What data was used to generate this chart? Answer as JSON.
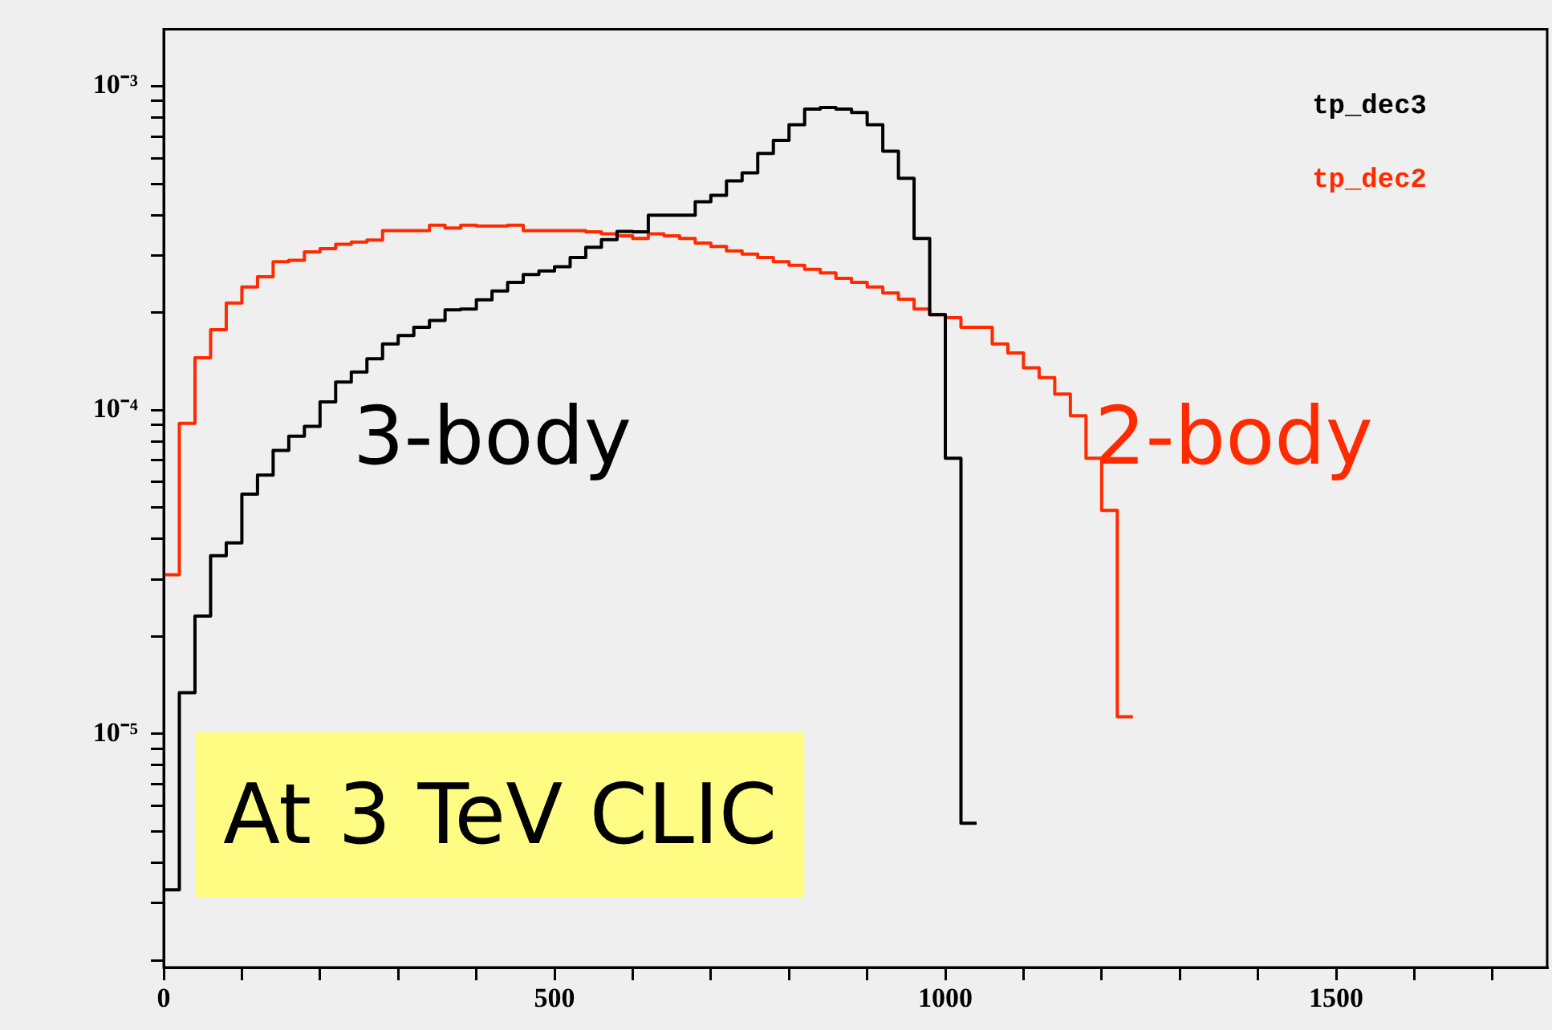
{
  "chart_data": {
    "type": "step",
    "series": [
      {
        "name": "tp_dec3",
        "color": "#000000",
        "x": [
          0,
          20,
          40,
          60,
          80,
          100,
          120,
          140,
          160,
          180,
          200,
          220,
          240,
          260,
          280,
          300,
          320,
          340,
          360,
          380,
          400,
          420,
          440,
          460,
          480,
          500,
          520,
          540,
          560,
          580,
          600,
          620,
          640,
          660,
          680,
          700,
          720,
          740,
          760,
          780,
          800,
          820,
          840,
          860,
          880,
          900,
          920,
          940,
          960,
          980,
          1000,
          1020,
          1040
        ],
        "values": [
          3.3e-06,
          1.34e-05,
          2.31e-05,
          3.55e-05,
          3.89e-05,
          5.5e-05,
          6.3e-05,
          7.5e-05,
          8.3e-05,
          8.9e-05,
          0.000106,
          0.000122,
          0.000131,
          0.000144,
          0.00016,
          0.00017,
          0.00018,
          0.000189,
          0.000204,
          0.000205,
          0.000219,
          0.000233,
          0.000248,
          0.000262,
          0.000269,
          0.000277,
          0.000296,
          0.000318,
          0.000336,
          0.000356,
          0.000355,
          0.0004,
          0.0004,
          0.0004,
          0.00044,
          0.00046,
          0.00051,
          0.00054,
          0.00062,
          0.00068,
          0.00076,
          0.00085,
          0.00086,
          0.00085,
          0.00083,
          0.00076,
          0.00063,
          0.00052,
          0.000339,
          0.000197,
          7.1e-05,
          5.3e-06,
          5.3e-06
        ]
      },
      {
        "name": "tp_dec2",
        "color": "#ff2a00",
        "x": [
          0,
          20,
          40,
          60,
          80,
          100,
          120,
          140,
          160,
          180,
          200,
          220,
          240,
          260,
          280,
          300,
          320,
          340,
          360,
          380,
          400,
          420,
          440,
          460,
          480,
          500,
          520,
          540,
          560,
          580,
          600,
          620,
          640,
          660,
          680,
          700,
          720,
          740,
          760,
          780,
          800,
          820,
          840,
          860,
          880,
          900,
          920,
          940,
          960,
          980,
          1000,
          1020,
          1040,
          1060,
          1080,
          1100,
          1120,
          1140,
          1160,
          1180,
          1200,
          1220,
          1240
        ],
        "values": [
          3.1e-05,
          9.1e-05,
          0.000145,
          0.000177,
          0.000214,
          0.00024,
          0.000258,
          0.000287,
          0.00029,
          0.000308,
          0.000315,
          0.000325,
          0.00033,
          0.000335,
          0.000358,
          0.000358,
          0.000358,
          0.000372,
          0.000365,
          0.000372,
          0.00037,
          0.00037,
          0.000372,
          0.000358,
          0.000358,
          0.000358,
          0.000358,
          0.000355,
          0.00035,
          0.000345,
          0.000339,
          0.00035,
          0.000345,
          0.000339,
          0.000328,
          0.00032,
          0.00031,
          0.000303,
          0.000296,
          0.000287,
          0.00028,
          0.000272,
          0.000265,
          0.000255,
          0.000248,
          0.00024,
          0.00023,
          0.00022,
          0.000205,
          0.000197,
          0.000193,
          0.00018,
          0.00018,
          0.00016,
          0.00015,
          0.000135,
          0.000126,
          0.000112,
          9.6e-05,
          7.1e-05,
          4.9e-05,
          1.13e-05,
          1.13e-05
        ]
      }
    ],
    "xlim": [
      0,
      1770
    ],
    "xticks": [
      0,
      {
        "value": 100,
        "label": null
      },
      {
        "value": 200,
        "label": null
      },
      {
        "value": 300,
        "label": null
      },
      {
        "value": 400,
        "label": null
      },
      500,
      {
        "value": 600,
        "label": null
      },
      {
        "value": 700,
        "label": null
      },
      {
        "value": 800,
        "label": null
      },
      {
        "value": 900,
        "label": null
      },
      1000,
      {
        "value": 1100,
        "label": null
      },
      {
        "value": 1200,
        "label": null
      },
      {
        "value": 1300,
        "label": null
      },
      {
        "value": 1400,
        "label": null
      },
      1500,
      {
        "value": 1600,
        "label": null
      },
      {
        "value": 1700,
        "label": null
      }
    ],
    "ylim": [
      1.9e-06,
      0.0015
    ],
    "yticks": [
      {
        "value": 2e-06,
        "label": null
      },
      {
        "value": 3e-06,
        "label": null
      },
      {
        "value": 4e-06,
        "label": null
      },
      {
        "value": 5e-06,
        "label": null
      },
      {
        "value": 6e-06,
        "label": null
      },
      {
        "value": 7e-06,
        "label": null
      },
      {
        "value": 8e-06,
        "label": null
      },
      {
        "value": 9e-06,
        "label": null
      },
      {
        "value": 1e-05,
        "label": "10⁻⁵"
      },
      {
        "value": 2e-05,
        "label": null
      },
      {
        "value": 3e-05,
        "label": null
      },
      {
        "value": 4e-05,
        "label": null
      },
      {
        "value": 5e-05,
        "label": null
      },
      {
        "value": 6e-05,
        "label": null
      },
      {
        "value": 7e-05,
        "label": null
      },
      {
        "value": 8e-05,
        "label": null
      },
      {
        "value": 9e-05,
        "label": null
      },
      {
        "value": 0.0001,
        "label": "10⁻⁴"
      },
      {
        "value": 0.0002,
        "label": null
      },
      {
        "value": 0.0003,
        "label": null
      },
      {
        "value": 0.0004,
        "label": null
      },
      {
        "value": 0.0005,
        "label": null
      },
      {
        "value": 0.0006,
        "label": null
      },
      {
        "value": 0.0007,
        "label": null
      },
      {
        "value": 0.0008,
        "label": null
      },
      {
        "value": 0.0009,
        "label": null
      },
      {
        "value": 0.001,
        "label": "10⁻³"
      }
    ],
    "log": "y",
    "annotations": [
      "3-body",
      "2-body",
      "At 3 TeV CLIC"
    ]
  }
}
